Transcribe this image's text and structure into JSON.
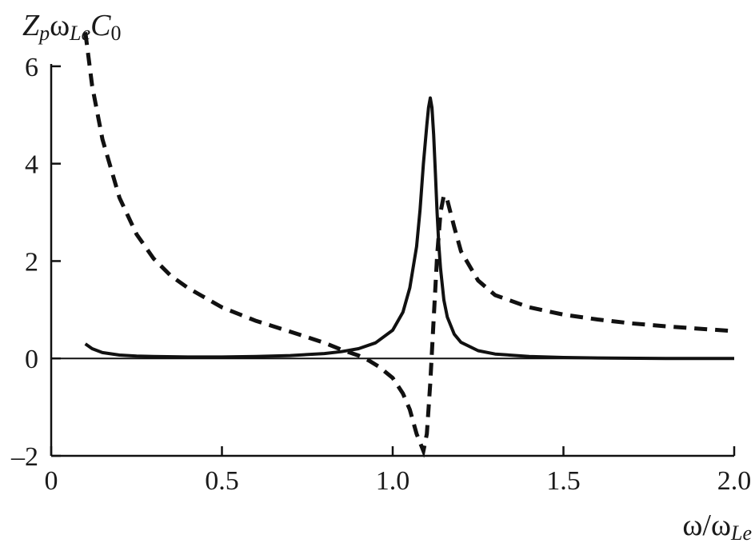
{
  "chart_data": {
    "type": "line",
    "title": "",
    "xlabel": {
      "parts": [
        {
          "text": "ω/ω",
          "style": "normal"
        },
        {
          "text": "Le",
          "style": "sub"
        }
      ]
    },
    "ylabel": {
      "parts": [
        {
          "text": "Z",
          "style": "it"
        },
        {
          "text": "p",
          "style": "sub"
        },
        {
          "text": "ω",
          "style": "normal"
        },
        {
          "text": "Le",
          "style": "sub"
        },
        {
          "text": "C",
          "style": "it"
        },
        {
          "text": "0",
          "style": "sub0"
        }
      ]
    },
    "xlim": [
      0,
      2.0
    ],
    "ylim": [
      -2,
      7
    ],
    "x_ticks": [
      {
        "value": 0,
        "label": "0"
      },
      {
        "value": 0.5,
        "label": "0.5"
      },
      {
        "value": 1.0,
        "label": "1.0"
      },
      {
        "value": 1.5,
        "label": "1.5"
      },
      {
        "value": 2.0,
        "label": "2.0"
      }
    ],
    "y_ticks": [
      {
        "value": -2,
        "label": "–2"
      },
      {
        "value": 0,
        "label": "0"
      },
      {
        "value": 2,
        "label": "2"
      },
      {
        "value": 4,
        "label": "4"
      },
      {
        "value": 6,
        "label": "6"
      }
    ],
    "grid": false,
    "zero_line": true,
    "series": [
      {
        "style": "solid",
        "x": [
          0.1,
          0.12,
          0.15,
          0.2,
          0.25,
          0.3,
          0.4,
          0.5,
          0.6,
          0.7,
          0.8,
          0.85,
          0.9,
          0.95,
          1.0,
          1.03,
          1.05,
          1.07,
          1.08,
          1.09,
          1.1,
          1.105,
          1.11,
          1.115,
          1.12,
          1.125,
          1.13,
          1.135,
          1.14,
          1.15,
          1.16,
          1.18,
          1.2,
          1.25,
          1.3,
          1.4,
          1.5,
          1.6,
          1.8,
          2.0
        ],
        "y": [
          0.3,
          0.2,
          0.12,
          0.07,
          0.05,
          0.04,
          0.03,
          0.03,
          0.04,
          0.06,
          0.1,
          0.14,
          0.2,
          0.32,
          0.58,
          0.95,
          1.45,
          2.3,
          3.05,
          4.0,
          4.8,
          5.15,
          5.35,
          5.15,
          4.6,
          3.8,
          3.0,
          2.35,
          1.85,
          1.2,
          0.85,
          0.5,
          0.33,
          0.16,
          0.09,
          0.04,
          0.02,
          0.01,
          0.0,
          0.0
        ]
      },
      {
        "style": "dashed",
        "x": [
          0.1,
          0.12,
          0.15,
          0.2,
          0.25,
          0.3,
          0.35,
          0.4,
          0.5,
          0.6,
          0.7,
          0.8,
          0.85,
          0.9,
          0.93,
          0.96,
          1.0,
          1.03,
          1.05,
          1.07,
          1.09,
          1.1,
          1.11,
          1.12,
          1.13,
          1.14,
          1.15,
          1.16,
          1.18,
          1.2,
          1.25,
          1.3,
          1.4,
          1.5,
          1.6,
          1.7,
          1.8,
          1.9,
          2.0
        ],
        "y": [
          6.7,
          5.6,
          4.5,
          3.3,
          2.55,
          2.05,
          1.7,
          1.45,
          1.05,
          0.77,
          0.55,
          0.32,
          0.18,
          0.06,
          -0.04,
          -0.17,
          -0.4,
          -0.72,
          -1.05,
          -1.55,
          -1.9,
          -1.55,
          -0.5,
          0.8,
          2.1,
          3.0,
          3.35,
          3.25,
          2.7,
          2.2,
          1.6,
          1.3,
          1.05,
          0.9,
          0.8,
          0.72,
          0.66,
          0.61,
          0.56
        ]
      }
    ]
  }
}
